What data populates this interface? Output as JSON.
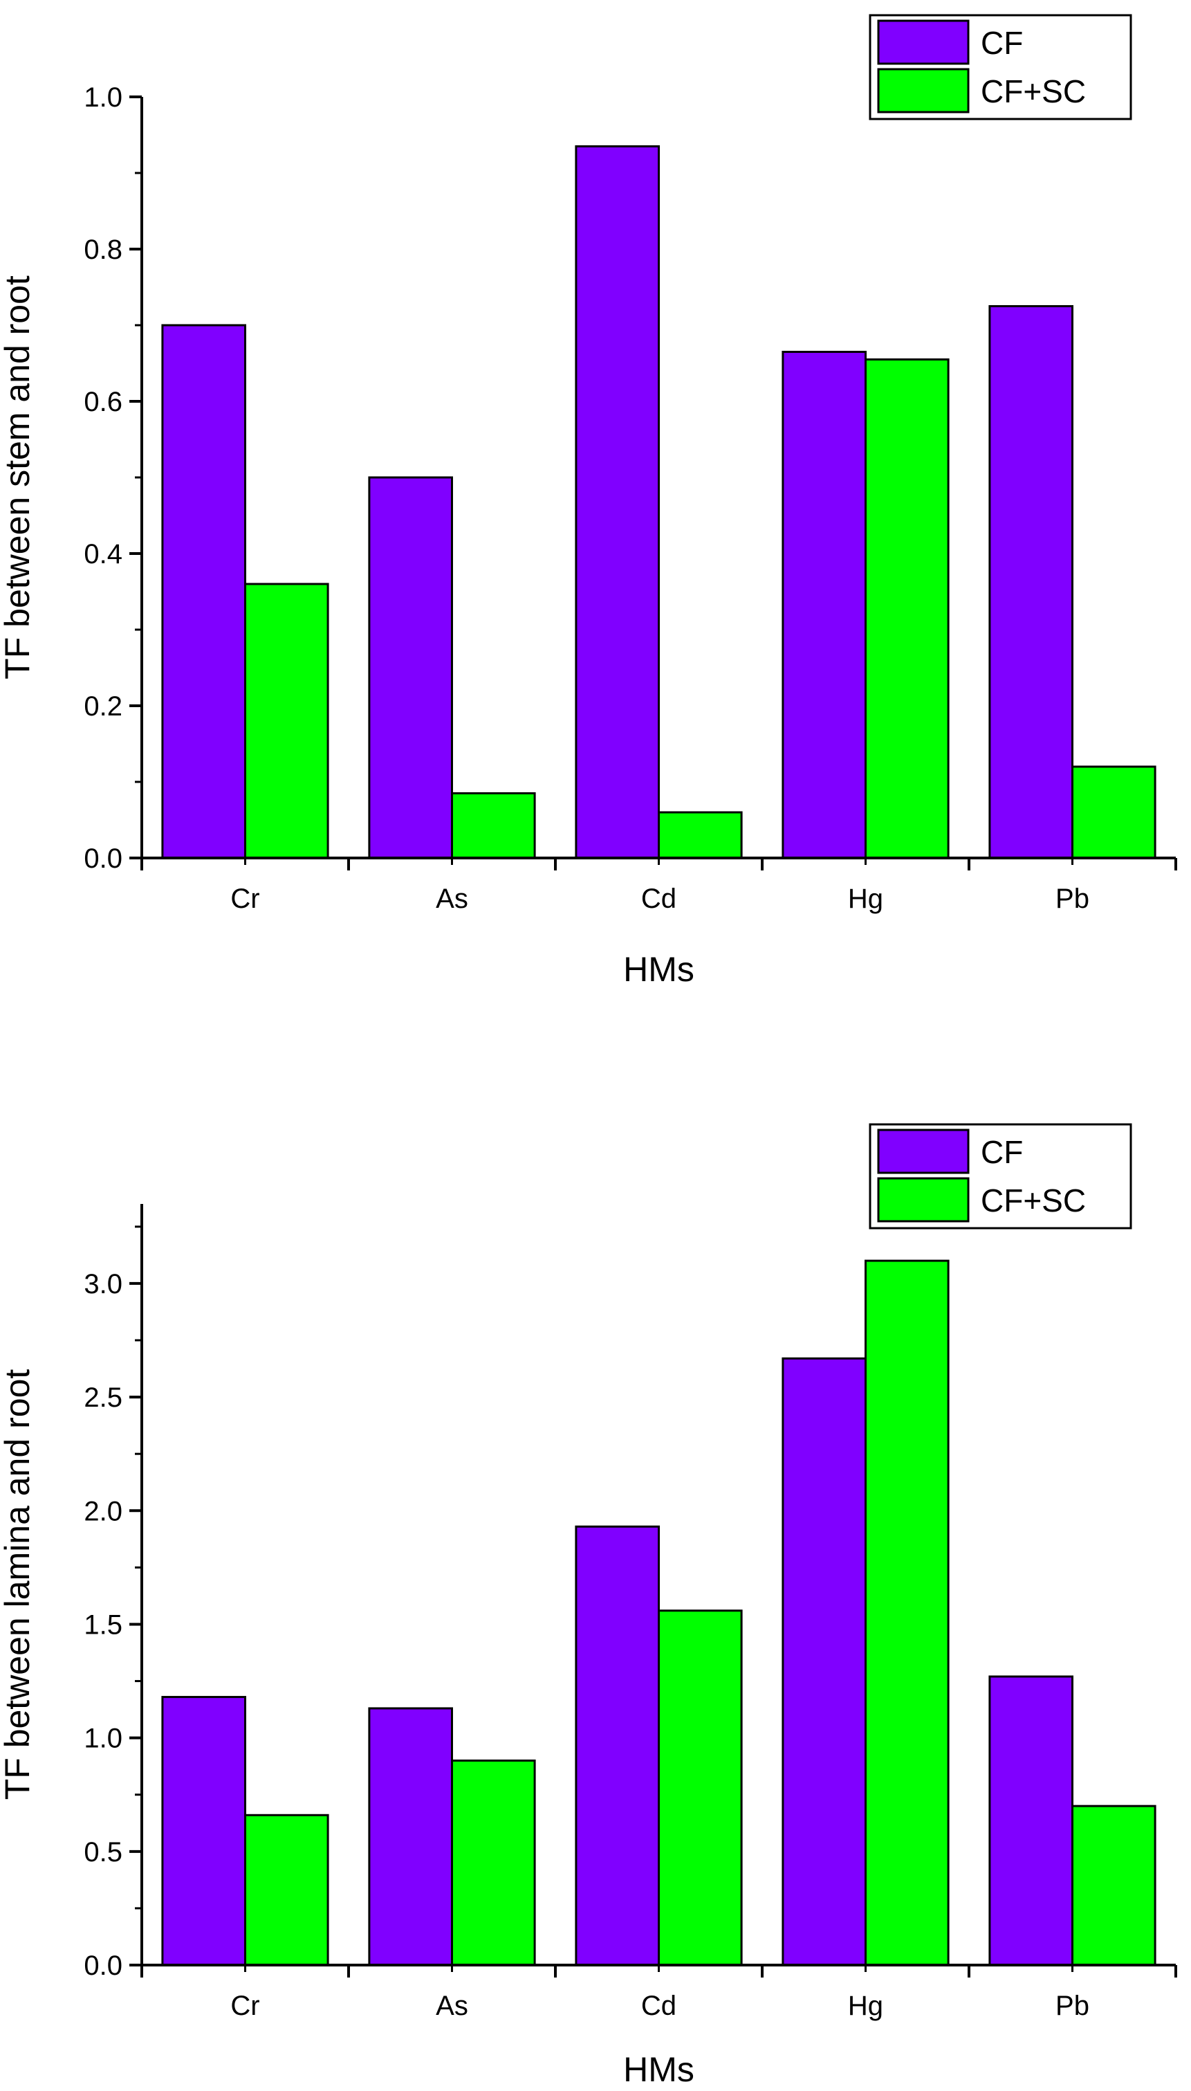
{
  "colors": {
    "cf": "#8000ff",
    "cf_sc": "#00ff00",
    "axis": "#000000"
  },
  "chart_data": [
    {
      "type": "bar",
      "title": "",
      "xlabel": "HMs",
      "ylabel": "TF between stem and root",
      "categories": [
        "Cr",
        "As",
        "Cd",
        "Hg",
        "Pb"
      ],
      "series": [
        {
          "name": "CF",
          "values": [
            0.7,
            0.5,
            0.935,
            0.665,
            0.725
          ]
        },
        {
          "name": "CF+SC",
          "values": [
            0.36,
            0.085,
            0.06,
            0.655,
            0.12
          ]
        }
      ],
      "ylim": [
        0,
        1.0
      ],
      "yticks": [
        0.0,
        0.2,
        0.4,
        0.6,
        0.8,
        1.0
      ],
      "ytick_labels": [
        "0.0",
        "0.2",
        "0.4",
        "0.6",
        "0.8",
        "1.0"
      ],
      "grid": false,
      "legend_position": "top-right"
    },
    {
      "type": "bar",
      "title": "",
      "xlabel": "HMs",
      "ylabel": "TF between lamina and root",
      "categories": [
        "Cr",
        "As",
        "Cd",
        "Hg",
        "Pb"
      ],
      "series": [
        {
          "name": "CF",
          "values": [
            1.18,
            1.13,
            1.93,
            2.67,
            1.27
          ]
        },
        {
          "name": "CF+SC",
          "values": [
            0.66,
            0.9,
            1.56,
            3.1,
            0.7
          ]
        }
      ],
      "ylim": [
        0,
        3.35
      ],
      "yticks": [
        0.0,
        0.5,
        1.0,
        1.5,
        2.0,
        2.5,
        3.0
      ],
      "ytick_labels": [
        "0.0",
        "0.5",
        "1.0",
        "1.5",
        "2.0",
        "2.5",
        "3.0"
      ],
      "grid": false,
      "legend_position": "top-right"
    }
  ]
}
